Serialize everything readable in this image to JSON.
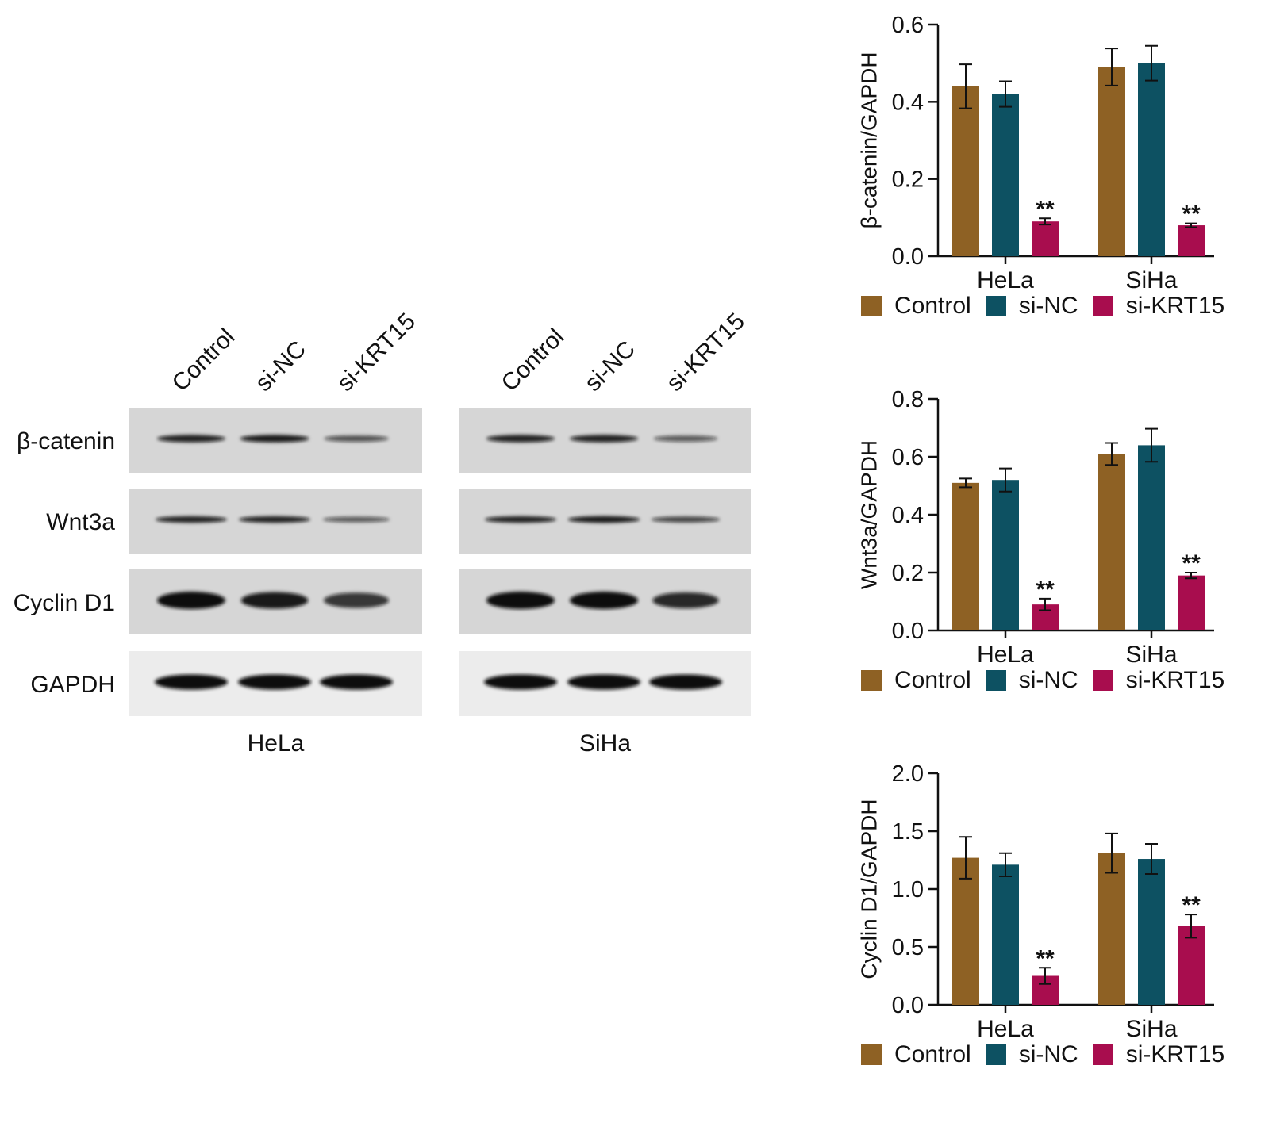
{
  "colors": {
    "control": "#8e6124",
    "si_nc": "#0d5162",
    "si_krt15": "#a80d4e",
    "axis": "#111111",
    "blot_bg": "#d6d6d6",
    "blot_bg_light": "#ececec",
    "band": "#111111"
  },
  "blot_panel": {
    "lane_labels": [
      "Control",
      "si-NC",
      "si-KRT15"
    ],
    "row_labels": [
      "β-catenin",
      "Wnt3a",
      "Cyclin D1",
      "GAPDH"
    ],
    "groups": [
      {
        "name": "HeLa",
        "band_intensity": [
          [
            0.85,
            0.9,
            0.5
          ],
          [
            0.85,
            0.85,
            0.45
          ],
          [
            1.0,
            0.9,
            0.7
          ],
          [
            1.0,
            1.0,
            1.0
          ]
        ]
      },
      {
        "name": "SiHa",
        "band_intensity": [
          [
            0.85,
            0.85,
            0.45
          ],
          [
            0.85,
            0.9,
            0.6
          ],
          [
            1.0,
            1.0,
            0.8
          ],
          [
            1.0,
            1.0,
            1.0
          ]
        ]
      }
    ]
  },
  "chart_data": [
    {
      "type": "bar",
      "ylabel": "β-catenin/GAPDH",
      "categories": [
        "HeLa",
        "SiHa"
      ],
      "ylim": [
        0,
        0.6
      ],
      "yticks": [
        "0.0",
        "0.2",
        "0.4",
        "0.6"
      ],
      "series": [
        {
          "name": "Control",
          "values": [
            0.44,
            0.49
          ],
          "errors": [
            0.057,
            0.048
          ]
        },
        {
          "name": "si-NC",
          "values": [
            0.42,
            0.5
          ],
          "errors": [
            0.033,
            0.045
          ]
        },
        {
          "name": "si-KRT15",
          "values": [
            0.09,
            0.08
          ],
          "errors": [
            0.008,
            0.005
          ]
        }
      ],
      "annotations": [
        {
          "series": 2,
          "category": 0,
          "text": "**"
        },
        {
          "series": 2,
          "category": 1,
          "text": "**"
        }
      ],
      "legend": "bottom"
    },
    {
      "type": "bar",
      "ylabel": "Wnt3a/GAPDH",
      "categories": [
        "HeLa",
        "SiHa"
      ],
      "ylim": [
        0,
        0.8
      ],
      "yticks": [
        "0.0",
        "0.2",
        "0.4",
        "0.6",
        "0.8"
      ],
      "series": [
        {
          "name": "Control",
          "values": [
            0.51,
            0.61
          ],
          "errors": [
            0.015,
            0.038
          ]
        },
        {
          "name": "si-NC",
          "values": [
            0.52,
            0.64
          ],
          "errors": [
            0.04,
            0.057
          ]
        },
        {
          "name": "si-KRT15",
          "values": [
            0.09,
            0.19
          ],
          "errors": [
            0.02,
            0.01
          ]
        }
      ],
      "annotations": [
        {
          "series": 2,
          "category": 0,
          "text": "**"
        },
        {
          "series": 2,
          "category": 1,
          "text": "**"
        }
      ],
      "legend": "bottom"
    },
    {
      "type": "bar",
      "ylabel": "Cyclin D1/GAPDH",
      "categories": [
        "HeLa",
        "SiHa"
      ],
      "ylim": [
        0,
        2.0
      ],
      "yticks": [
        "0.0",
        "0.5",
        "1.0",
        "1.5",
        "2.0"
      ],
      "series": [
        {
          "name": "Control",
          "values": [
            1.27,
            1.31
          ],
          "errors": [
            0.18,
            0.17
          ]
        },
        {
          "name": "si-NC",
          "values": [
            1.21,
            1.26
          ],
          "errors": [
            0.1,
            0.13
          ]
        },
        {
          "name": "si-KRT15",
          "values": [
            0.25,
            0.68
          ],
          "errors": [
            0.07,
            0.1
          ]
        }
      ],
      "annotations": [
        {
          "series": 2,
          "category": 0,
          "text": "**"
        },
        {
          "series": 2,
          "category": 1,
          "text": "**"
        }
      ],
      "legend": "bottom"
    }
  ]
}
